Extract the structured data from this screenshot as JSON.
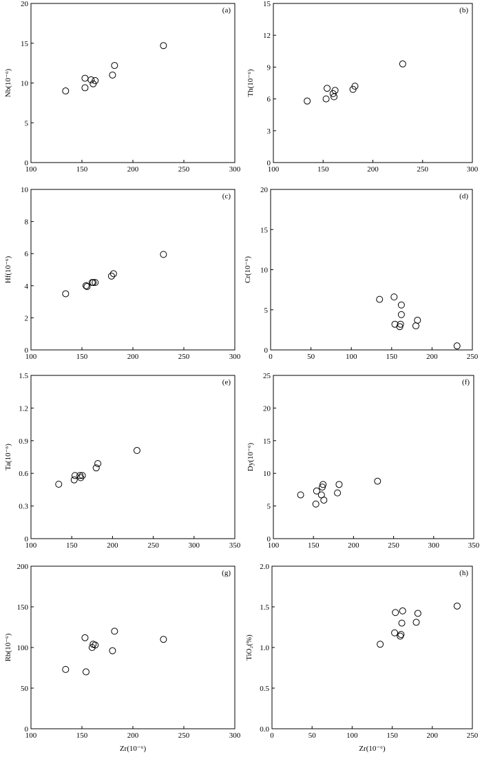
{
  "chart_data": [
    {
      "panel": "(a)",
      "type": "scatter",
      "ylabel": "Nb(10⁻⁶)",
      "xlabel": "",
      "xlim": [
        100,
        300
      ],
      "xticks": [
        100,
        150,
        200,
        250,
        300
      ],
      "ylim": [
        0,
        20
      ],
      "yticks": [
        0,
        5,
        10,
        15,
        20
      ],
      "x": [
        134,
        153,
        153,
        159,
        161,
        163,
        180,
        182,
        230
      ],
      "y": [
        9.0,
        10.6,
        9.4,
        10.4,
        9.9,
        10.3,
        11.0,
        12.2,
        14.7
      ]
    },
    {
      "panel": "(b)",
      "type": "scatter",
      "ylabel": "Th(10⁻⁶)",
      "xlabel": "",
      "xlim": [
        100,
        300
      ],
      "xticks": [
        100,
        150,
        200,
        250,
        300
      ],
      "ylim": [
        0,
        15
      ],
      "yticks": [
        0,
        3,
        6,
        9,
        12,
        15
      ],
      "x": [
        134,
        153,
        154,
        160,
        161,
        162,
        180,
        182,
        230
      ],
      "y": [
        5.8,
        6.0,
        7.0,
        6.5,
        6.2,
        6.8,
        6.9,
        7.2,
        9.3
      ]
    },
    {
      "panel": "(c)",
      "type": "scatter",
      "ylabel": "Hf(10⁻⁶)",
      "xlabel": "",
      "xlim": [
        100,
        300
      ],
      "xticks": [
        100,
        150,
        200,
        250,
        300
      ],
      "ylim": [
        0,
        10
      ],
      "yticks": [
        0,
        2,
        4,
        6,
        8,
        10
      ],
      "x": [
        134,
        154,
        155,
        160,
        161,
        163,
        179,
        181,
        230
      ],
      "y": [
        3.5,
        4.0,
        3.95,
        4.2,
        4.2,
        4.2,
        4.6,
        4.75,
        5.95
      ]
    },
    {
      "panel": "(d)",
      "type": "scatter",
      "ylabel": "Cr(10⁻⁶)",
      "xlabel": "",
      "xlim": [
        0,
        250
      ],
      "xticks": [
        0,
        50,
        100,
        150,
        200,
        250
      ],
      "ylim": [
        0,
        20
      ],
      "yticks": [
        0,
        5,
        10,
        15,
        20
      ],
      "x": [
        135,
        153,
        154,
        160,
        161,
        162,
        162,
        180,
        182,
        231
      ],
      "y": [
        6.3,
        6.6,
        3.2,
        2.9,
        3.2,
        4.4,
        5.6,
        3.0,
        3.7,
        0.5
      ]
    },
    {
      "panel": "(e)",
      "type": "scatter",
      "ylabel": "Ta(10⁻⁶)",
      "xlabel": "",
      "xlim": [
        100,
        350
      ],
      "xticks": [
        100,
        150,
        200,
        250,
        300,
        350
      ],
      "ylim": [
        0,
        1.5
      ],
      "yticks": [
        0,
        0.3,
        0.6,
        0.9,
        1.2,
        1.5
      ],
      "tick_labels_y": [
        "0",
        "0.3",
        "0.6",
        "0.9",
        "1.2",
        "1.5"
      ],
      "x": [
        134,
        153,
        154,
        160,
        161,
        163,
        180,
        182,
        230
      ],
      "y": [
        0.5,
        0.54,
        0.58,
        0.58,
        0.56,
        0.58,
        0.65,
        0.69,
        0.81
      ]
    },
    {
      "panel": "(f)",
      "type": "scatter",
      "ylabel": "Dy(10⁻⁶)",
      "xlabel": "",
      "xlim": [
        100,
        350
      ],
      "xticks": [
        100,
        150,
        200,
        250,
        300,
        350
      ],
      "ylim": [
        0,
        25
      ],
      "yticks": [
        0,
        5,
        10,
        15,
        20,
        25
      ],
      "x": [
        134,
        153,
        154,
        160,
        161,
        162,
        163,
        180,
        182,
        230
      ],
      "y": [
        6.7,
        5.3,
        7.3,
        6.7,
        7.9,
        8.3,
        5.9,
        7.0,
        8.3,
        8.8
      ]
    },
    {
      "panel": "(g)",
      "type": "scatter",
      "ylabel": "Rb(10⁻⁶)",
      "xlabel": "Zr(10⁻⁶)",
      "xlim": [
        100,
        300
      ],
      "xticks": [
        100,
        150,
        200,
        250,
        300
      ],
      "ylim": [
        0,
        200
      ],
      "yticks": [
        0,
        50,
        100,
        150,
        200
      ],
      "x": [
        134,
        153,
        154,
        160,
        161,
        163,
        180,
        182,
        230
      ],
      "y": [
        73,
        112,
        70,
        100,
        104,
        103,
        96,
        120,
        110
      ]
    },
    {
      "panel": "(h)",
      "type": "scatter",
      "ylabel": "TiO₂(%)",
      "xlabel": "Zr(10⁻⁶)",
      "xlim": [
        0,
        250
      ],
      "xticks": [
        0,
        50,
        100,
        150,
        200,
        250
      ],
      "ylim": [
        0,
        2.0
      ],
      "yticks": [
        0,
        0.5,
        1.0,
        1.5,
        2.0
      ],
      "tick_labels_y": [
        "0.0",
        "0.5",
        "1.0",
        "1.5",
        "2.0"
      ],
      "x": [
        135,
        153,
        154,
        160,
        161,
        162,
        163,
        180,
        182,
        231
      ],
      "y": [
        1.04,
        1.18,
        1.43,
        1.14,
        1.16,
        1.3,
        1.45,
        1.31,
        1.42,
        1.51
      ]
    }
  ]
}
